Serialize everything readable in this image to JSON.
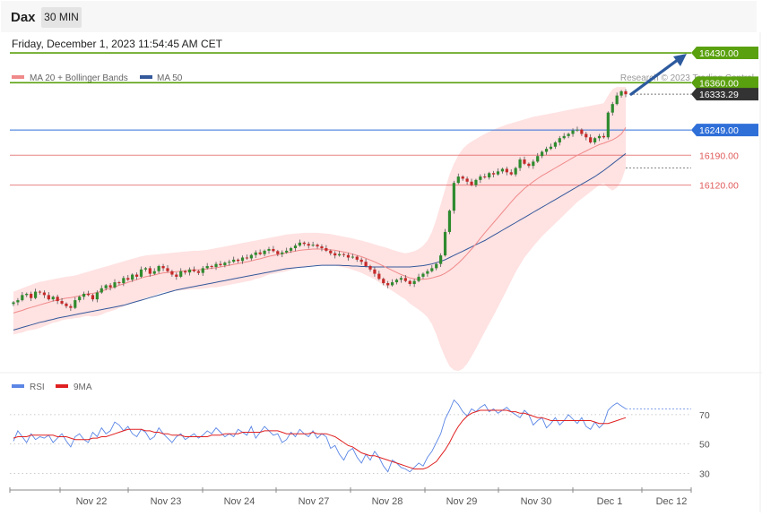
{
  "header": {
    "symbol": "Dax",
    "timeframe": "30 MIN",
    "datetime": "Friday, December 1, 2023 11:54:45 AM CET"
  },
  "legend": {
    "ma20": "MA 20 + Bollinger Bands",
    "ma50": "MA 50",
    "credit": "Research © 2023 Trading Central"
  },
  "rsi_legend": {
    "rsi": "RSI",
    "ma": "9MA"
  },
  "colors": {
    "resistance": "#5aa10f",
    "pivot": "#2f6fd8",
    "support": "#e05a5a",
    "ma20": "#f08a8a",
    "ma50": "#34599b",
    "band": "#ffd8d8",
    "bull": "#2e8b2e",
    "bear": "#c62828",
    "arrow": "#2d5a9e",
    "current": "#333333",
    "rsi": "#5b86e5",
    "rsi_ma": "#e02020"
  },
  "chart_data": [
    {
      "type": "candlestick",
      "x_labels": [
        "Nov 22",
        "Nov 23",
        "Nov 24",
        "Nov 27",
        "Nov 28",
        "Nov 29",
        "Nov 30",
        "Dec 1",
        "Dec 12"
      ],
      "y_range": [
        15680,
        16470
      ],
      "levels": [
        {
          "value": 16430.0,
          "label": "16430.00",
          "kind": "resistance"
        },
        {
          "value": 16360.0,
          "label": "16360.00",
          "kind": "resistance"
        },
        {
          "value": 16333.29,
          "label": "16333.29",
          "kind": "current"
        },
        {
          "value": 16249.0,
          "label": "16249.00",
          "kind": "pivot"
        },
        {
          "value": 16190.0,
          "label": "16190.00",
          "kind": "support"
        },
        {
          "value": 16120.0,
          "label": "16120.00",
          "kind": "support"
        }
      ],
      "close": [
        15845,
        15850,
        15862,
        15865,
        15855,
        15870,
        15868,
        15862,
        15852,
        15858,
        15848,
        15842,
        15836,
        15832,
        15850,
        15858,
        15865,
        15862,
        15852,
        15868,
        15878,
        15885,
        15880,
        15892,
        15890,
        15902,
        15898,
        15910,
        15905,
        15922,
        15925,
        15912,
        15918,
        15930,
        15925,
        15918,
        15910,
        15905,
        15918,
        15915,
        15922,
        15918,
        15914,
        15925,
        15930,
        15928,
        15935,
        15932,
        15938,
        15940,
        15945,
        15942,
        15950,
        15948,
        15956,
        15962,
        15958,
        15966,
        15970,
        15965,
        15958,
        15962,
        15966,
        15972,
        15978,
        15985,
        15982,
        15978,
        15980,
        15976,
        15972,
        15966,
        15960,
        15955,
        15958,
        15956,
        15950,
        15952,
        15945,
        15940,
        15930,
        15922,
        15912,
        15900,
        15890,
        15885,
        15892,
        15898,
        15902,
        15895,
        15888,
        15895,
        15905,
        15912,
        15918,
        15925,
        15935,
        15955,
        16010,
        16060,
        16125,
        16140,
        16135,
        16128,
        16120,
        16132,
        16140,
        16138,
        16148,
        16145,
        16152,
        16158,
        16150,
        16145,
        16160,
        16180,
        16170,
        16165,
        16175,
        16188,
        16198,
        16205,
        16210,
        16220,
        16230,
        16235,
        16240,
        16248,
        16250,
        16240,
        16232,
        16220,
        16230,
        16235,
        16232,
        16290,
        16310,
        16330,
        16340,
        16333
      ],
      "ma20": [
        15820,
        15823,
        15826,
        15830,
        15833,
        15836,
        15839,
        15842,
        15845,
        15848,
        15850,
        15853,
        15855,
        15856,
        15858,
        15860,
        15863,
        15865,
        15866,
        15868,
        15871,
        15875,
        15878,
        15881,
        15885,
        15888,
        15892,
        15895,
        15898,
        15902,
        15905,
        15907,
        15909,
        15912,
        15914,
        15915,
        15916,
        15917,
        15918,
        15919,
        15920,
        15921,
        15921,
        15922,
        15923,
        15925,
        15926,
        15928,
        15930,
        15932,
        15934,
        15936,
        15938,
        15940,
        15942,
        15945,
        15947,
        15950,
        15953,
        15955,
        15957,
        15959,
        15961,
        15963,
        15965,
        15967,
        15968,
        15969,
        15970,
        15970,
        15970,
        15969,
        15968,
        15967,
        15965,
        15963,
        15961,
        15958,
        15955,
        15952,
        15948,
        15944,
        15940,
        15935,
        15930,
        15925,
        15920,
        15915,
        15910,
        15906,
        15902,
        15900,
        15899,
        15899,
        15900,
        15902,
        15905,
        15908,
        15913,
        15920,
        15928,
        15937,
        15947,
        15958,
        15970,
        15982,
        15995,
        16008,
        16020,
        16032,
        16044,
        16056,
        16068,
        16080,
        16092,
        16102,
        16112,
        16120,
        16128,
        16135,
        16142,
        16148,
        16154,
        16160,
        16166,
        16172,
        16178,
        16184,
        16190,
        16195,
        16200,
        16205,
        16210,
        16215,
        16218,
        16222,
        16226,
        16232,
        16240,
        16255
      ],
      "ma50": [
        15780,
        15783,
        15786,
        15789,
        15792,
        15795,
        15798,
        15800,
        15803,
        15805,
        15808,
        15810,
        15812,
        15814,
        15816,
        15818,
        15820,
        15822,
        15824,
        15826,
        15828,
        15830,
        15832,
        15834,
        15836,
        15838,
        15841,
        15844,
        15847,
        15850,
        15853,
        15856,
        15859,
        15862,
        15865,
        15868,
        15871,
        15874,
        15876,
        15878,
        15880,
        15882,
        15884,
        15886,
        15888,
        15890,
        15892,
        15894,
        15896,
        15898,
        15900,
        15902,
        15904,
        15906,
        15908,
        15910,
        15912,
        15914,
        15916,
        15918,
        15920,
        15922,
        15924,
        15925,
        15926,
        15927,
        15928,
        15929,
        15930,
        15931,
        15932,
        15932,
        15932,
        15932,
        15932,
        15931,
        15931,
        15930,
        15930,
        15929,
        15929,
        15928,
        15928,
        15928,
        15928,
        15928,
        15928,
        15928,
        15928,
        15928,
        15928,
        15929,
        15930,
        15931,
        15933,
        15935,
        15938,
        15941,
        15945,
        15950,
        15955,
        15960,
        15965,
        15970,
        15975,
        15980,
        15985,
        15990,
        15996,
        16002,
        16008,
        16014,
        16020,
        16026,
        16032,
        16038,
        16044,
        16050,
        16056,
        16062,
        16068,
        16074,
        16080,
        16086,
        16092,
        16098,
        16104,
        16110,
        16116,
        16122,
        16128,
        16134,
        16140,
        16147,
        16154,
        16162,
        16170,
        16178,
        16186,
        16194
      ],
      "band_upper": [
        15870,
        15874,
        15878,
        15882,
        15886,
        15890,
        15893,
        15895,
        15897,
        15899,
        15901,
        15903,
        15905,
        15906,
        15908,
        15911,
        15914,
        15917,
        15920,
        15923,
        15926,
        15929,
        15932,
        15935,
        15938,
        15941,
        15944,
        15947,
        15950,
        15953,
        15955,
        15956,
        15957,
        15958,
        15959,
        15960,
        15961,
        15962,
        15963,
        15964,
        15965,
        15966,
        15966,
        15967,
        15968,
        15970,
        15972,
        15974,
        15976,
        15978,
        15980,
        15982,
        15984,
        15986,
        15988,
        15990,
        15992,
        15994,
        15996,
        15998,
        16000,
        16002,
        16004,
        16005,
        16006,
        16007,
        16008,
        16008,
        16008,
        16008,
        16007,
        16006,
        16005,
        16003,
        16001,
        15999,
        15997,
        15995,
        15992,
        15990,
        15987,
        15984,
        15981,
        15978,
        15975,
        15972,
        15968,
        15965,
        15962,
        15960,
        15962,
        15965,
        15970,
        15978,
        15990,
        16010,
        16040,
        16075,
        16110,
        16145,
        16170,
        16190,
        16205,
        16215,
        16222,
        16228,
        16234,
        16240,
        16245,
        16250,
        16254,
        16258,
        16262,
        16265,
        16268,
        16271,
        16274,
        16277,
        16280,
        16282,
        16284,
        16286,
        16288,
        16290,
        16292,
        16294,
        16296,
        16298,
        16300,
        16302,
        16304,
        16306,
        16308,
        16310,
        16312,
        16330,
        16345,
        16350,
        16350,
        16350
      ],
      "band_lower": [
        15770,
        15772,
        15774,
        15778,
        15780,
        15782,
        15785,
        15789,
        15793,
        15797,
        15799,
        15803,
        15805,
        15806,
        15808,
        15809,
        15812,
        15813,
        15812,
        15813,
        15816,
        15821,
        15824,
        15827,
        15832,
        15835,
        15840,
        15843,
        15846,
        15851,
        15855,
        15858,
        15861,
        15866,
        15869,
        15870,
        15871,
        15872,
        15873,
        15874,
        15875,
        15876,
        15876,
        15877,
        15878,
        15880,
        15880,
        15882,
        15884,
        15886,
        15888,
        15890,
        15892,
        15894,
        15896,
        15900,
        15902,
        15906,
        15910,
        15912,
        15914,
        15916,
        15918,
        15921,
        15924,
        15927,
        15928,
        15930,
        15932,
        15932,
        15933,
        15932,
        15931,
        15931,
        15929,
        15927,
        15925,
        15921,
        15918,
        15914,
        15909,
        15904,
        15899,
        15892,
        15885,
        15878,
        15872,
        15865,
        15858,
        15852,
        15842,
        15835,
        15828,
        15820,
        15810,
        15794,
        15770,
        15741,
        15716,
        15695,
        15686,
        15684,
        15689,
        15701,
        15718,
        15736,
        15756,
        15776,
        15795,
        15814,
        15834,
        15854,
        15874,
        15895,
        15916,
        15933,
        15950,
        15963,
        15976,
        15988,
        16000,
        16010,
        16020,
        16030,
        16040,
        16050,
        16060,
        16070,
        16080,
        16088,
        16096,
        16104,
        16112,
        16120,
        16124,
        16114,
        16107,
        16114,
        16130,
        16160
      ]
    },
    {
      "type": "line",
      "name": "RSI",
      "y_ticks": [
        70,
        50,
        30
      ],
      "y_range": [
        18,
        84
      ],
      "rsi": [
        52,
        59,
        55,
        51,
        57,
        53,
        55,
        54,
        56,
        51,
        54,
        57,
        52,
        48,
        55,
        57,
        53,
        51,
        58,
        55,
        61,
        57,
        59,
        65,
        63,
        59,
        62,
        57,
        55,
        60,
        58,
        53,
        55,
        61,
        57,
        54,
        51,
        55,
        57,
        53,
        55,
        57,
        54,
        56,
        59,
        57,
        61,
        58,
        55,
        57,
        55,
        60,
        58,
        56,
        62,
        54,
        58,
        62,
        59,
        56,
        57,
        51,
        53,
        58,
        55,
        60,
        57,
        55,
        59,
        54,
        57,
        55,
        47,
        49,
        43,
        39,
        45,
        47,
        41,
        37,
        43,
        39,
        45,
        41,
        35,
        31,
        39,
        37,
        34,
        33,
        31,
        34,
        37,
        35,
        41,
        45,
        51,
        57,
        67,
        73,
        80,
        77,
        72,
        69,
        74,
        72,
        75,
        77,
        72,
        74,
        71,
        73,
        75,
        72,
        70,
        68,
        73,
        70,
        63,
        66,
        68,
        61,
        64,
        68,
        63,
        66,
        70,
        67,
        64,
        68,
        62,
        60,
        65,
        61,
        64,
        73,
        76,
        78,
        76,
        74
      ],
      "rsi_ma": [
        54,
        55,
        55,
        55,
        56,
        56,
        56,
        56,
        56,
        56,
        55,
        55,
        55,
        54,
        53,
        53,
        53,
        53,
        54,
        54,
        55,
        55,
        56,
        57,
        58,
        59,
        60,
        60,
        60,
        60,
        59,
        59,
        58,
        58,
        57,
        57,
        56,
        56,
        56,
        55,
        55,
        55,
        55,
        55,
        55,
        56,
        56,
        56,
        57,
        57,
        57,
        57,
        58,
        58,
        58,
        58,
        58,
        59,
        59,
        59,
        59,
        58,
        57,
        57,
        57,
        57,
        57,
        57,
        58,
        57,
        57,
        57,
        56,
        55,
        53,
        51,
        49,
        48,
        46,
        44,
        43,
        42,
        42,
        41,
        40,
        39,
        38,
        37,
        36,
        35,
        34,
        33,
        33,
        33,
        34,
        36,
        38,
        42,
        46,
        51,
        57,
        62,
        66,
        69,
        71,
        72,
        73,
        73,
        73,
        73,
        73,
        73,
        73,
        72,
        72,
        71,
        71,
        70,
        69,
        68,
        68,
        67,
        66,
        66,
        66,
        66,
        66,
        66,
        66,
        66,
        66,
        66,
        65,
        64,
        64,
        64,
        65,
        66,
        67,
        68
      ]
    }
  ]
}
